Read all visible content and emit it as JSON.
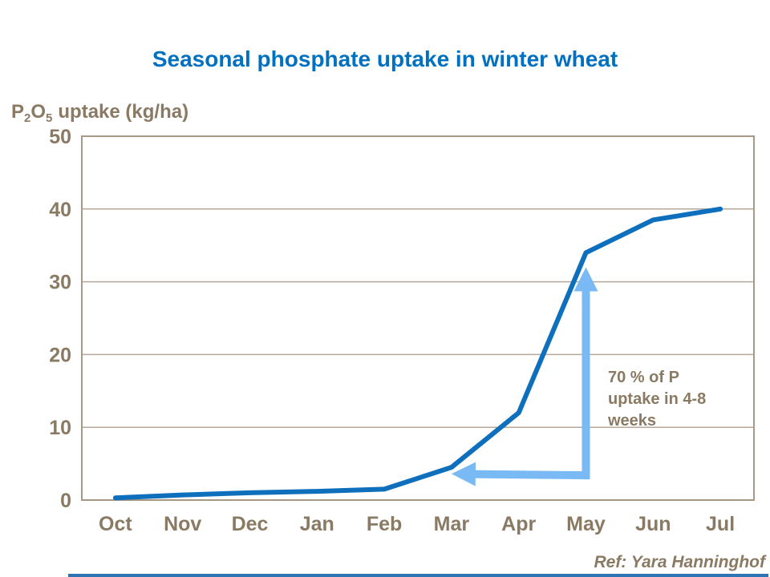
{
  "title": "Seasonal phosphate uptake in winter wheat",
  "y_axis_title": {
    "p": "P",
    "sub2": "2",
    "o": "O",
    "sub5": "5",
    "rest": "uptake (kg/ha)"
  },
  "annotation": {
    "text": "70 % of P uptake in 4-8 weeks",
    "lines": [
      "70 % of P",
      "uptake in 4-8",
      "weeks"
    ]
  },
  "footer": {
    "ref": "Ref: Yara Hanninghof"
  },
  "colors": {
    "blue": "#0070C0",
    "brown": "#8A7A63",
    "curve": "#0E6FBC",
    "arrow": "#79BAF4",
    "border": "#A89885",
    "grid": "#B5A89A",
    "footerbar": "#2E74B5"
  },
  "chart_data": {
    "type": "line",
    "title": "Seasonal phosphate uptake in winter wheat",
    "ylabel": "P2O5 uptake (kg/ha)",
    "xlabel": "",
    "categories": [
      "Oct",
      "Nov",
      "Dec",
      "Jan",
      "Feb",
      "Mar",
      "Apr",
      "May",
      "Jun",
      "Jul"
    ],
    "values": [
      0.3,
      0.7,
      1.0,
      1.2,
      1.5,
      4.5,
      12,
      34,
      38.5,
      40
    ],
    "ylim": [
      0,
      50
    ],
    "yticks": [
      0,
      10,
      20,
      30,
      40,
      50
    ],
    "grid": "horizontal",
    "legend": "none",
    "annotations": [
      {
        "type": "text",
        "text": "70 % of P uptake in 4-8 weeks"
      },
      {
        "type": "arrow",
        "direction": "up",
        "from": {
          "month": "May",
          "value": 3.4
        },
        "to": {
          "month": "May",
          "value": 32
        }
      },
      {
        "type": "arrow",
        "direction": "left",
        "from": {
          "month": "May",
          "value": 3.4
        },
        "to": {
          "month": "Mar",
          "value": 3.6
        }
      }
    ]
  }
}
